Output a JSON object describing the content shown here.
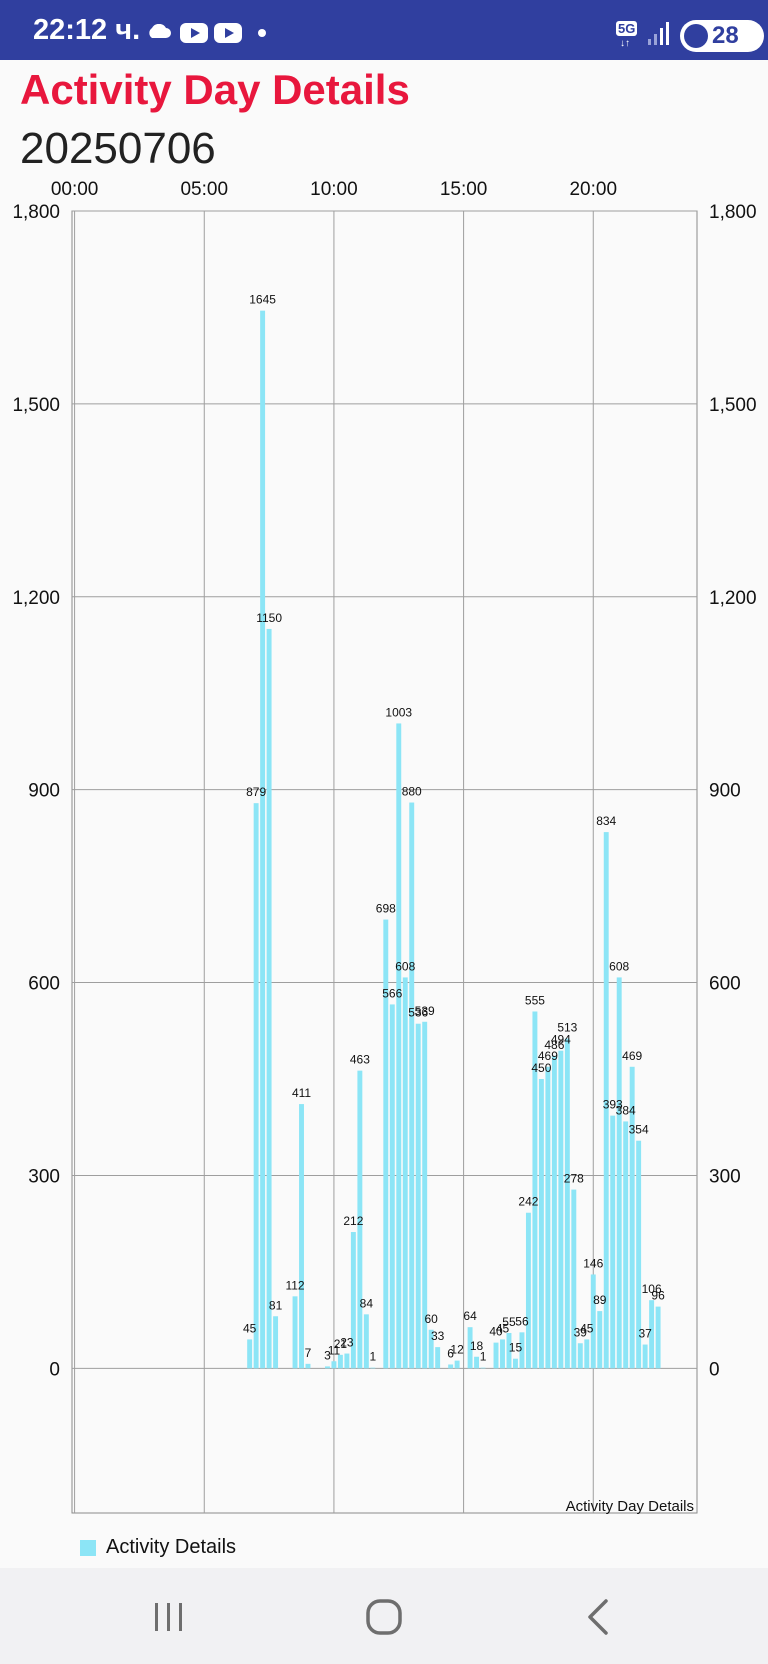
{
  "status_bar": {
    "time": "22:12 ч.",
    "network": "5G",
    "network_arrows": "↓↑",
    "battery": "28",
    "icons": [
      "cloud-icon",
      "youtube-icon",
      "youtube-icon",
      "dot-icon",
      "signal-icon",
      "battery-saver-icon"
    ]
  },
  "page": {
    "title": "Activity Day Details",
    "date": "20250706"
  },
  "legend": {
    "label": "Activity Details"
  },
  "nav": {
    "icons": [
      "recent-apps-icon",
      "home-icon",
      "back-icon"
    ]
  },
  "colors": {
    "title": "#e8173d",
    "bar": "#8ce5f6",
    "status_bar": "#303f9f"
  },
  "chart_data": {
    "type": "bar",
    "description": "Activity Day Details",
    "ylim": [
      -225,
      1800
    ],
    "yticks": [
      0,
      300,
      600,
      900,
      1200,
      1500,
      1800
    ],
    "ytick_labels": [
      "0",
      "300",
      "600",
      "900",
      "1,200",
      "1,500",
      "1,800"
    ],
    "xlim_hours": [
      -0.1,
      24
    ],
    "xticks_hours": [
      0,
      5,
      10,
      15,
      20
    ],
    "xtick_labels": [
      "00:00",
      "05:00",
      "10:00",
      "15:00",
      "20:00"
    ],
    "x_axis_position": "top",
    "y_axis": "both",
    "grid": true,
    "legend_position": "bottom-left",
    "series": [
      {
        "name": "Activity Details",
        "bar_width_hours": 0.19,
        "points": [
          {
            "x": "06:45",
            "y": 45
          },
          {
            "x": "07:00",
            "y": 879
          },
          {
            "x": "07:15",
            "y": 1645
          },
          {
            "x": "07:30",
            "y": 1150
          },
          {
            "x": "07:45",
            "y": 81
          },
          {
            "x": "08:30",
            "y": 112
          },
          {
            "x": "08:45",
            "y": 411
          },
          {
            "x": "09:00",
            "y": 7
          },
          {
            "x": "09:45",
            "y": 3
          },
          {
            "x": "10:00",
            "y": 11
          },
          {
            "x": "10:15",
            "y": 21
          },
          {
            "x": "10:30",
            "y": 23
          },
          {
            "x": "10:45",
            "y": 212
          },
          {
            "x": "11:00",
            "y": 463
          },
          {
            "x": "11:15",
            "y": 84
          },
          {
            "x": "11:30",
            "y": 1
          },
          {
            "x": "12:00",
            "y": 698
          },
          {
            "x": "12:15",
            "y": 566
          },
          {
            "x": "12:30",
            "y": 1003
          },
          {
            "x": "12:45",
            "y": 608
          },
          {
            "x": "13:00",
            "y": 880
          },
          {
            "x": "13:15",
            "y": 536
          },
          {
            "x": "13:30",
            "y": 539
          },
          {
            "x": "13:45",
            "y": 60
          },
          {
            "x": "14:00",
            "y": 33
          },
          {
            "x": "14:30",
            "y": 6
          },
          {
            "x": "14:45",
            "y": 12
          },
          {
            "x": "15:15",
            "y": 64
          },
          {
            "x": "15:30",
            "y": 18
          },
          {
            "x": "15:45",
            "y": 1
          },
          {
            "x": "16:15",
            "y": 40
          },
          {
            "x": "16:30",
            "y": 45
          },
          {
            "x": "16:45",
            "y": 55
          },
          {
            "x": "17:00",
            "y": 15
          },
          {
            "x": "17:15",
            "y": 56
          },
          {
            "x": "17:30",
            "y": 242
          },
          {
            "x": "17:45",
            "y": 555
          },
          {
            "x": "18:00",
            "y": 450
          },
          {
            "x": "18:15",
            "y": 469
          },
          {
            "x": "18:30",
            "y": 486
          },
          {
            "x": "18:45",
            "y": 494
          },
          {
            "x": "19:00",
            "y": 513
          },
          {
            "x": "19:15",
            "y": 278
          },
          {
            "x": "19:30",
            "y": 39
          },
          {
            "x": "19:45",
            "y": 45
          },
          {
            "x": "20:00",
            "y": 146
          },
          {
            "x": "20:15",
            "y": 89
          },
          {
            "x": "20:30",
            "y": 834
          },
          {
            "x": "20:45",
            "y": 393
          },
          {
            "x": "21:00",
            "y": 608
          },
          {
            "x": "21:15",
            "y": 384
          },
          {
            "x": "21:30",
            "y": 469
          },
          {
            "x": "21:45",
            "y": 354
          },
          {
            "x": "22:00",
            "y": 37
          },
          {
            "x": "22:15",
            "y": 106
          },
          {
            "x": "22:30",
            "y": 96
          }
        ]
      }
    ]
  }
}
